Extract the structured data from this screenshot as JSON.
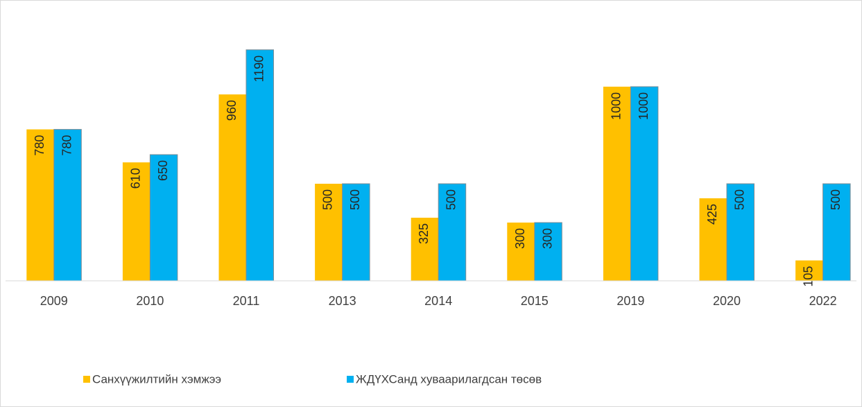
{
  "chart_data": {
    "type": "bar",
    "categories": [
      "2009",
      "2010",
      "2011",
      "2013",
      "2014",
      "2015",
      "2019",
      "2020",
      "2022"
    ],
    "series": [
      {
        "name": "Санхүүжилтийн хэмжээ",
        "color": "#ffc000",
        "values": [
          780,
          610,
          960,
          500,
          325,
          300,
          1000,
          425,
          105
        ]
      },
      {
        "name": "ЖДҮХСанд хуваарилагдсан төсөв",
        "color": "#00b0f0",
        "values": [
          780,
          650,
          1190,
          500,
          500,
          300,
          1000,
          500,
          500
        ]
      }
    ],
    "ylim": [
      0,
      1300
    ]
  }
}
